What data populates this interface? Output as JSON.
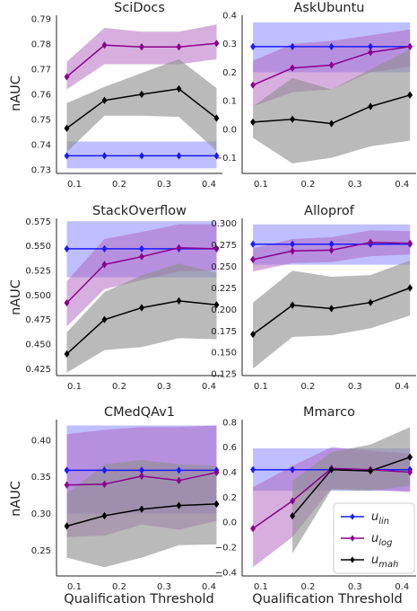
{
  "figure": {
    "ylabel": "nAUC",
    "xlabel": "Qualification Threshold",
    "legend_position": "lower-right (in Mmarco panel)",
    "legend": [
      {
        "key": "lin",
        "base": "u",
        "sub": "lin",
        "color": "#1a1aff"
      },
      {
        "key": "log",
        "base": "u",
        "sub": "log",
        "color": "#8b008b"
      },
      {
        "key": "mah",
        "base": "u",
        "sub": "mah",
        "color": "#000000"
      }
    ],
    "band_colors": {
      "lin": "#8080ff",
      "log": "#b060c0",
      "mah": "#909090"
    }
  },
  "chart_data": [
    {
      "type": "line",
      "title": "SciDocs",
      "x": [
        0.083,
        0.167,
        0.25,
        0.333,
        0.417
      ],
      "xlim": [
        0.06,
        0.43
      ],
      "xticks": [
        "0.1",
        "0.2",
        "0.3",
        "0.4"
      ],
      "ylim": [
        0.7285,
        0.7915
      ],
      "yticks": [
        0.73,
        0.74,
        0.75,
        0.76,
        0.77,
        0.78,
        0.79
      ],
      "ytick_labels": [
        "0.73",
        "0.74",
        "0.75",
        "0.76",
        "0.77",
        "0.78",
        "0.79"
      ],
      "series": [
        {
          "key": "lin",
          "values": [
            0.7355,
            0.7355,
            0.7355,
            0.7355,
            0.7355
          ],
          "band_low": [
            0.7305,
            0.7305,
            0.7305,
            0.7305,
            0.7305
          ],
          "band_high": [
            0.7412,
            0.7412,
            0.7412,
            0.7412,
            0.7412
          ]
        },
        {
          "key": "log",
          "values": [
            0.767,
            0.7796,
            0.7789,
            0.7789,
            0.7803
          ],
          "band_low": [
            0.762,
            0.772,
            0.772,
            0.772,
            0.774
          ],
          "band_high": [
            0.773,
            0.7865,
            0.785,
            0.785,
            0.7878
          ]
        },
        {
          "key": "mah",
          "values": [
            0.7465,
            0.7576,
            0.76,
            0.7622,
            0.7505
          ],
          "band_low": [
            0.737,
            0.7515,
            0.7515,
            0.751,
            0.7375
          ],
          "band_high": [
            0.7565,
            0.763,
            0.7685,
            0.774,
            0.7625
          ]
        }
      ]
    },
    {
      "type": "line",
      "title": "AskUbuntu",
      "x": [
        0.083,
        0.167,
        0.25,
        0.333,
        0.417
      ],
      "xlim": [
        0.06,
        0.43
      ],
      "xticks": [
        "0.1",
        "0.2",
        "0.3",
        "0.4"
      ],
      "ylim": [
        -0.155,
        0.4
      ],
      "yticks": [
        -0.1,
        0.0,
        0.1,
        0.2,
        0.3,
        0.4
      ],
      "ytick_labels": [
        "−0.1",
        "0.0",
        "0.1",
        "0.2",
        "0.3",
        "0.4"
      ],
      "series": [
        {
          "key": "lin",
          "values": [
            0.29,
            0.29,
            0.29,
            0.29,
            0.29
          ],
          "band_low": [
            0.2,
            0.2,
            0.2,
            0.2,
            0.2
          ],
          "band_high": [
            0.375,
            0.375,
            0.375,
            0.375,
            0.375
          ]
        },
        {
          "key": "log",
          "values": [
            0.155,
            0.215,
            0.225,
            0.27,
            0.29
          ],
          "band_low": [
            0.08,
            0.13,
            0.14,
            0.2,
            0.22
          ],
          "band_high": [
            0.24,
            0.3,
            0.31,
            0.33,
            0.35
          ]
        },
        {
          "key": "mah",
          "values": [
            0.025,
            0.035,
            0.02,
            0.08,
            0.12
          ],
          "band_low": [
            -0.03,
            -0.12,
            -0.1,
            -0.06,
            -0.04
          ],
          "band_high": [
            0.08,
            0.18,
            0.14,
            0.21,
            0.28
          ]
        }
      ]
    },
    {
      "type": "line",
      "title": "StackOverflow",
      "x": [
        0.083,
        0.167,
        0.25,
        0.333,
        0.417
      ],
      "xlim": [
        0.06,
        0.43
      ],
      "xticks": [
        "0.1",
        "0.2",
        "0.3",
        "0.4"
      ],
      "ylim": [
        0.418,
        0.578
      ],
      "yticks": [
        0.425,
        0.45,
        0.475,
        0.5,
        0.525,
        0.55,
        0.575
      ],
      "ytick_labels": [
        "0.425",
        "0.450",
        "0.475",
        "0.500",
        "0.525",
        "0.550",
        "0.575"
      ],
      "series": [
        {
          "key": "lin",
          "values": [
            0.547,
            0.547,
            0.547,
            0.547,
            0.547
          ],
          "band_low": [
            0.518,
            0.518,
            0.518,
            0.518,
            0.518
          ],
          "band_high": [
            0.575,
            0.575,
            0.575,
            0.575,
            0.575
          ]
        },
        {
          "key": "log",
          "values": [
            0.492,
            0.531,
            0.539,
            0.548,
            0.547
          ],
          "band_low": [
            0.468,
            0.506,
            0.515,
            0.524,
            0.525
          ],
          "band_high": [
            0.514,
            0.557,
            0.564,
            0.572,
            0.572
          ]
        },
        {
          "key": "mah",
          "values": [
            0.44,
            0.475,
            0.487,
            0.494,
            0.49
          ],
          "band_low": [
            0.421,
            0.444,
            0.447,
            0.456,
            0.455
          ],
          "band_high": [
            0.462,
            0.503,
            0.52,
            0.532,
            0.523
          ]
        }
      ]
    },
    {
      "type": "line",
      "title": "Alloprof",
      "x": [
        0.083,
        0.167,
        0.25,
        0.333,
        0.417
      ],
      "xlim": [
        0.06,
        0.43
      ],
      "xticks": [
        "0.1",
        "0.2",
        "0.3",
        "0.4"
      ],
      "ylim": [
        0.123,
        0.306
      ],
      "yticks": [
        0.125,
        0.15,
        0.175,
        0.2,
        0.225,
        0.25,
        0.275,
        0.3
      ],
      "ytick_labels": [
        "0.125",
        "0.150",
        "0.175",
        "0.200",
        "0.225",
        "0.250",
        "0.275",
        "0.300"
      ],
      "series": [
        {
          "key": "lin",
          "values": [
            0.276,
            0.276,
            0.276,
            0.276,
            0.276
          ],
          "band_low": [
            0.252,
            0.252,
            0.252,
            0.252,
            0.252
          ],
          "band_high": [
            0.299,
            0.299,
            0.299,
            0.299,
            0.299
          ]
        },
        {
          "key": "log",
          "values": [
            0.258,
            0.268,
            0.269,
            0.278,
            0.277
          ],
          "band_low": [
            0.244,
            0.254,
            0.255,
            0.262,
            0.264
          ],
          "band_high": [
            0.271,
            0.282,
            0.284,
            0.292,
            0.291
          ]
        },
        {
          "key": "mah",
          "values": [
            0.171,
            0.205,
            0.201,
            0.208,
            0.225
          ],
          "band_low": [
            0.131,
            0.168,
            0.17,
            0.178,
            0.193
          ],
          "band_high": [
            0.208,
            0.245,
            0.238,
            0.24,
            0.257
          ]
        }
      ]
    },
    {
      "type": "line",
      "title": "CMedQAv1",
      "x": [
        0.083,
        0.167,
        0.25,
        0.333,
        0.417
      ],
      "xlim": [
        0.06,
        0.43
      ],
      "xticks": [
        "0.1",
        "0.2",
        "0.3",
        "0.4"
      ],
      "ylim": [
        0.215,
        0.428
      ],
      "yticks": [
        0.25,
        0.3,
        0.35,
        0.4
      ],
      "ytick_labels": [
        "0.25",
        "0.30",
        "0.35",
        "0.40"
      ],
      "series": [
        {
          "key": "lin",
          "values": [
            0.359,
            0.359,
            0.359,
            0.359,
            0.359
          ],
          "band_low": [
            0.3,
            0.3,
            0.3,
            0.3,
            0.3
          ],
          "band_high": [
            0.42,
            0.42,
            0.42,
            0.42,
            0.42
          ]
        },
        {
          "key": "log",
          "values": [
            0.339,
            0.34,
            0.351,
            0.345,
            0.356
          ],
          "band_low": [
            0.268,
            0.27,
            0.285,
            0.278,
            0.29
          ],
          "band_high": [
            0.408,
            0.414,
            0.418,
            0.418,
            0.42
          ]
        },
        {
          "key": "mah",
          "values": [
            0.283,
            0.297,
            0.306,
            0.311,
            0.313
          ],
          "band_low": [
            0.24,
            0.227,
            0.24,
            0.257,
            0.258
          ],
          "band_high": [
            0.327,
            0.367,
            0.373,
            0.367,
            0.365
          ]
        }
      ]
    },
    {
      "type": "line",
      "title": "Mmarco",
      "x": [
        0.083,
        0.167,
        0.25,
        0.333,
        0.417
      ],
      "xlim": [
        0.06,
        0.43
      ],
      "xticks": [
        "0.1",
        "0.2",
        "0.3",
        "0.4"
      ],
      "ylim": [
        -0.43,
        0.82
      ],
      "yticks": [
        -0.4,
        -0.2,
        0.0,
        0.2,
        0.4,
        0.6,
        0.8
      ],
      "ytick_labels": [
        "−0.4",
        "−0.2",
        "0.0",
        "0.2",
        "0.4",
        "0.6",
        "0.8"
      ],
      "series": [
        {
          "key": "lin",
          "values": [
            0.42,
            0.42,
            0.42,
            0.42,
            0.42
          ],
          "band_low": [
            0.25,
            0.25,
            0.25,
            0.25,
            0.25
          ],
          "band_high": [
            0.59,
            0.59,
            0.59,
            0.59,
            0.59
          ]
        },
        {
          "key": "log",
          "values": [
            -0.05,
            0.17,
            0.43,
            0.42,
            0.4
          ],
          "band_low": [
            -0.36,
            -0.12,
            0.27,
            0.26,
            0.24
          ],
          "band_high": [
            0.28,
            0.45,
            0.6,
            0.57,
            0.55
          ]
        },
        {
          "key": "mah",
          "values": [
            null,
            0.05,
            0.42,
            0.41,
            0.52
          ],
          "band_low": [
            null,
            -0.25,
            0.26,
            0.25,
            0.29
          ],
          "band_high": [
            null,
            0.33,
            0.56,
            0.62,
            0.76
          ]
        }
      ]
    }
  ]
}
